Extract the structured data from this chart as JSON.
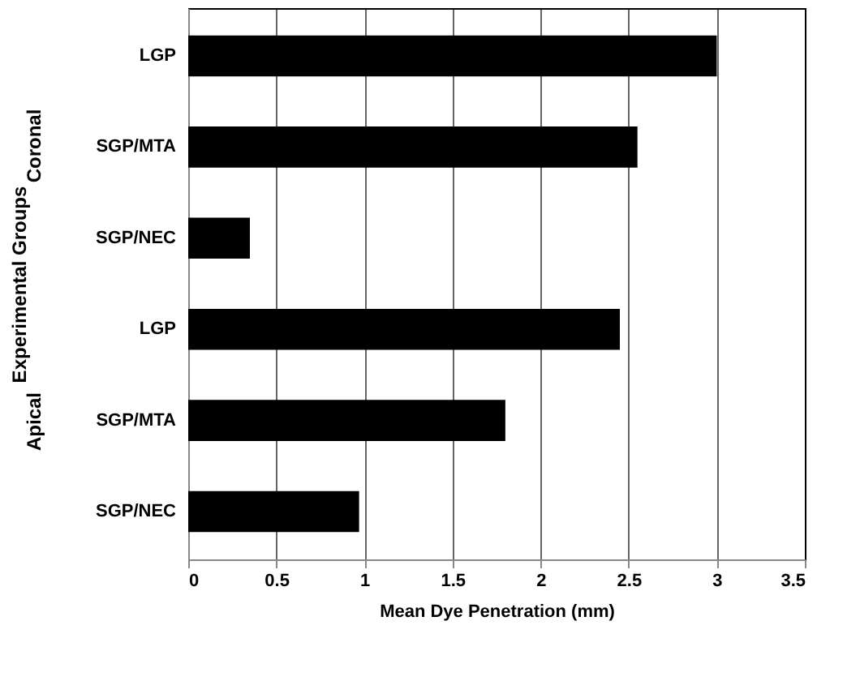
{
  "chart_data": {
    "type": "bar",
    "orientation": "horizontal",
    "xlabel": "Mean Dye Penetration (mm)",
    "ylabel": "Experimental Groups",
    "categories": [
      "LGP",
      "SGP/MTA",
      "SGP/NEC",
      "LGP",
      "SGP/MTA",
      "SGP/NEC"
    ],
    "values": [
      3.0,
      2.55,
      0.35,
      2.45,
      1.8,
      0.97
    ],
    "color": "#000000",
    "xlim": [
      0,
      3.5
    ],
    "xticks": [
      0,
      0.5,
      1,
      1.5,
      2,
      2.5,
      3,
      3.5
    ],
    "grid": "x",
    "annotations": [
      "Coronal",
      "Apical"
    ]
  }
}
